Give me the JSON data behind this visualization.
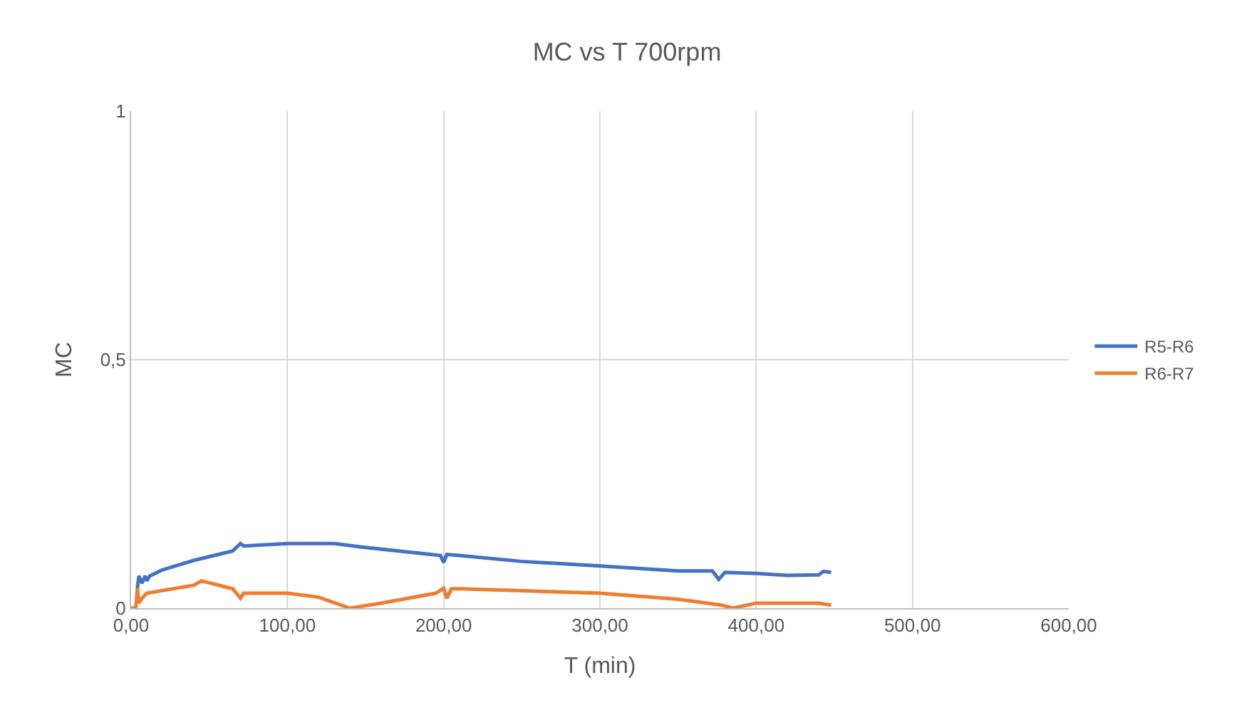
{
  "chart_data": {
    "type": "line",
    "title": "MC vs T 700rpm",
    "xlabel": "T (min)",
    "ylabel": "MC",
    "xlim": [
      0,
      600
    ],
    "ylim": [
      0,
      1
    ],
    "xticks": [
      {
        "value": 0,
        "label": "0,00"
      },
      {
        "value": 100,
        "label": "100,00"
      },
      {
        "value": 200,
        "label": "200,00"
      },
      {
        "value": 300,
        "label": "300,00"
      },
      {
        "value": 400,
        "label": "400,00"
      },
      {
        "value": 500,
        "label": "500,00"
      },
      {
        "value": 600,
        "label": "600,00"
      }
    ],
    "yticks": [
      0,
      {
        "value": 0.5,
        "label": "0,5"
      },
      1
    ],
    "grid": true,
    "legend": "right",
    "marker": "none",
    "line_style": "solid",
    "series": [
      {
        "name": "R5-R6",
        "color": "#4472c4",
        "x": [
          4,
          5,
          7,
          9,
          10,
          12,
          20,
          40,
          65,
          70,
          72,
          100,
          130,
          150,
          198,
          200,
          202,
          210,
          250,
          300,
          350,
          372,
          376,
          380,
          400,
          420,
          440,
          443,
          448
        ],
        "values": [
          0.04,
          0.065,
          0.05,
          0.065,
          0.055,
          0.065,
          0.077,
          0.096,
          0.115,
          0.13,
          0.125,
          0.13,
          0.13,
          0.122,
          0.106,
          0.092,
          0.108,
          0.106,
          0.094,
          0.085,
          0.075,
          0.075,
          0.058,
          0.072,
          0.07,
          0.066,
          0.067,
          0.074,
          0.072
        ]
      },
      {
        "name": "R6-R7",
        "color": "#ed7d31",
        "x": [
          0,
          3,
          4,
          5,
          7,
          10,
          40,
          45,
          65,
          70,
          72,
          100,
          120,
          140,
          160,
          195,
          200,
          202,
          205,
          210,
          250,
          300,
          350,
          378,
          385,
          400,
          440,
          448
        ],
        "values": [
          0,
          0,
          0.04,
          0.01,
          0.02,
          0.03,
          0.046,
          0.055,
          0.039,
          0.02,
          0.03,
          0.03,
          0.022,
          0,
          0.01,
          0.03,
          0.04,
          0.02,
          0.039,
          0.039,
          0.035,
          0.03,
          0.018,
          0.006,
          0,
          0.01,
          0.01,
          0.006
        ]
      }
    ]
  }
}
